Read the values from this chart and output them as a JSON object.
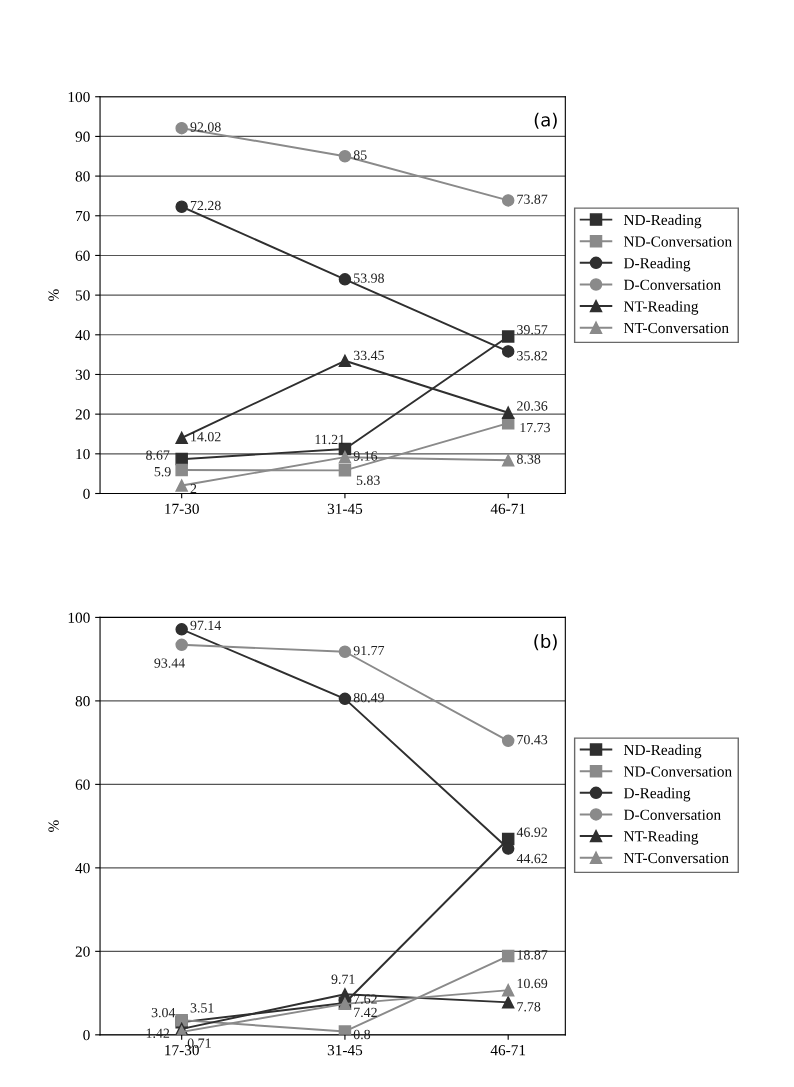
{
  "chart_data": [
    {
      "type": "line",
      "title": "(a)",
      "ylabel": "%",
      "categories": [
        "17-30",
        "31-45",
        "46-71"
      ],
      "ylim": [
        0,
        100
      ],
      "yticks": [
        0,
        10,
        20,
        30,
        40,
        50,
        60,
        70,
        80,
        90,
        100
      ],
      "grid": "y",
      "legend": "right",
      "data_labels": true,
      "series": [
        {
          "name": "ND-Reading",
          "color": "#2f2f2f",
          "marker": "square",
          "values": [
            8.67,
            11.21,
            39.57
          ]
        },
        {
          "name": "ND-Conversation",
          "color": "#8a8a8a",
          "marker": "square",
          "values": [
            5.9,
            5.83,
            17.73
          ]
        },
        {
          "name": "D-Reading",
          "color": "#2f2f2f",
          "marker": "circle",
          "values": [
            72.28,
            53.98,
            35.82
          ]
        },
        {
          "name": "D-Conversation",
          "color": "#8a8a8a",
          "marker": "circle",
          "values": [
            92.08,
            85,
            73.87
          ]
        },
        {
          "name": "NT-Reading",
          "color": "#2f2f2f",
          "marker": "triangle",
          "values": [
            14.02,
            33.45,
            20.36
          ]
        },
        {
          "name": "NT-Conversation",
          "color": "#8a8a8a",
          "marker": "triangle",
          "values": [
            2,
            9.16,
            8.38
          ]
        }
      ]
    },
    {
      "type": "line",
      "title": "(b)",
      "ylabel": "%",
      "categories": [
        "17-30",
        "31-45",
        "46-71"
      ],
      "ylim": [
        0,
        100
      ],
      "yticks": [
        0,
        20,
        40,
        60,
        80,
        100
      ],
      "grid": "y",
      "legend": "right",
      "data_labels": true,
      "series": [
        {
          "name": "ND-Reading",
          "color": "#2f2f2f",
          "marker": "square",
          "values": [
            3.04,
            7.62,
            46.92
          ]
        },
        {
          "name": "ND-Conversation",
          "color": "#8a8a8a",
          "marker": "square",
          "values": [
            3.51,
            0.8,
            18.87
          ]
        },
        {
          "name": "D-Reading",
          "color": "#2f2f2f",
          "marker": "circle",
          "values": [
            97.14,
            80.49,
            44.62
          ]
        },
        {
          "name": "D-Conversation",
          "color": "#8a8a8a",
          "marker": "circle",
          "values": [
            93.44,
            91.77,
            70.43
          ]
        },
        {
          "name": "NT-Reading",
          "color": "#2f2f2f",
          "marker": "triangle",
          "values": [
            1.42,
            9.71,
            7.78
          ]
        },
        {
          "name": "NT-Conversation",
          "color": "#8a8a8a",
          "marker": "triangle",
          "values": [
            0.71,
            7.42,
            10.69
          ]
        }
      ]
    }
  ]
}
